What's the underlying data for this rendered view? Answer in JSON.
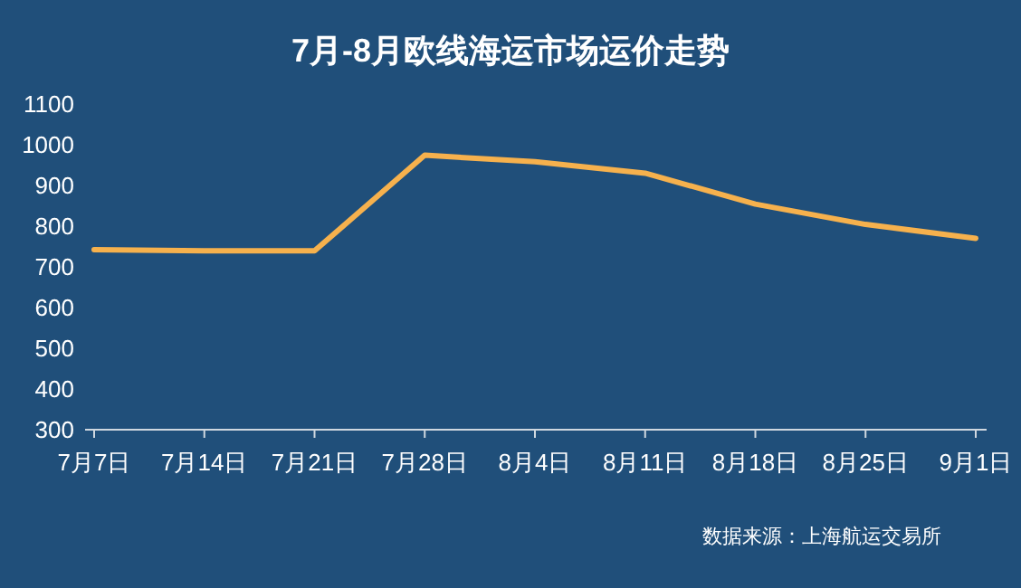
{
  "chart_data": {
    "type": "line",
    "title": "7月-8月欧线海运市场运价走势",
    "categories": [
      "7月7日",
      "7月14日",
      "7月21日",
      "7月28日",
      "8月4日",
      "8月11日",
      "8月18日",
      "8月25日",
      "9月1日"
    ],
    "series": [
      {
        "color": "#f6b14d",
        "values": [
          740,
          737,
          737,
          972,
          956,
          928,
          852,
          802,
          768
        ]
      }
    ],
    "ylim": [
      300,
      1100
    ],
    "yticks": [
      300,
      400,
      500,
      600,
      700,
      800,
      900,
      1000,
      1100
    ],
    "grid": false,
    "marker": "none",
    "line_style": "solid",
    "annotations": [
      "数据来源：上海航运交易所"
    ]
  }
}
